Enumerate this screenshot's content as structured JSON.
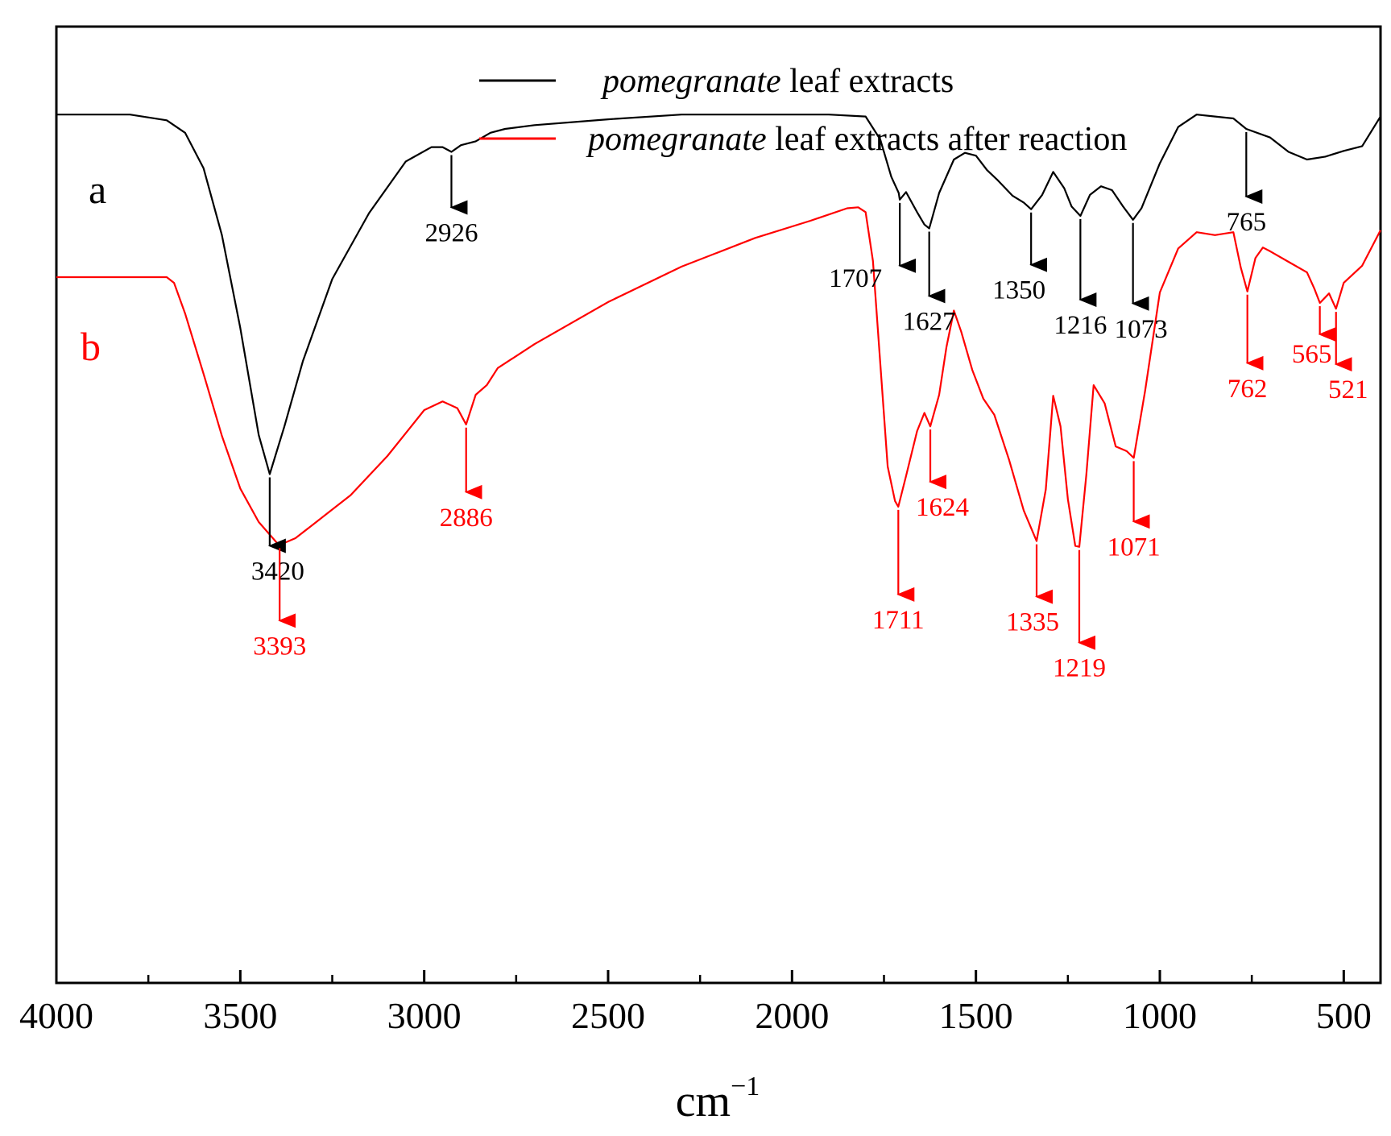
{
  "chart_data": {
    "type": "line",
    "xlabel": "cm",
    "xlabel_exponent": "−1",
    "ylabel": "",
    "xlim": [
      4000,
      400
    ],
    "x_reversed": true,
    "ylim": [
      0,
      100
    ],
    "y_ticks_shown": false,
    "grid": false,
    "legend_position": "top-center",
    "x_ticks": [
      4000,
      3500,
      3000,
      2500,
      2000,
      1500,
      1000,
      500
    ],
    "x_tick_labels": [
      "4000",
      "3500",
      "3000",
      "2500",
      "2000",
      "1500",
      "1000",
      "500"
    ],
    "legend": [
      {
        "italic_text": "pomegranate",
        "text": " leaf extracts",
        "color": "#000000"
      },
      {
        "italic_text": "pomegranate",
        "text": " leaf extracts after reaction",
        "color": "#ff0000"
      }
    ],
    "series": [
      {
        "letter": "a",
        "color": "#000000",
        "x": [
          4000,
          3800,
          3700,
          3650,
          3600,
          3550,
          3500,
          3450,
          3420,
          3380,
          3330,
          3250,
          3150,
          3050,
          2980,
          2950,
          2926,
          2900,
          2860,
          2820,
          2780,
          2700,
          2500,
          2300,
          2100,
          1900,
          1800,
          1760,
          1730,
          1710,
          1707,
          1690,
          1660,
          1640,
          1627,
          1600,
          1560,
          1530,
          1500,
          1470,
          1440,
          1400,
          1370,
          1350,
          1320,
          1290,
          1260,
          1240,
          1216,
          1190,
          1160,
          1130,
          1100,
          1073,
          1050,
          1000,
          950,
          900,
          850,
          800,
          765,
          700,
          650,
          600,
          550,
          500,
          450,
          400
        ],
        "y": [
          90.8,
          90.8,
          90.2,
          88.9,
          85.2,
          78.2,
          68.5,
          57.3,
          53.2,
          58.2,
          65.0,
          73.6,
          80.5,
          85.9,
          87.4,
          87.4,
          86.9,
          87.6,
          88.0,
          88.9,
          89.3,
          89.7,
          90.3,
          90.8,
          90.8,
          90.8,
          90.6,
          88.2,
          84.3,
          82.6,
          81.9,
          82.7,
          80.6,
          79.3,
          78.9,
          82.6,
          86.1,
          86.8,
          86.5,
          85.0,
          83.9,
          82.3,
          81.6,
          80.9,
          82.4,
          84.8,
          83.1,
          81.2,
          80.2,
          82.4,
          83.3,
          82.9,
          81.2,
          79.8,
          81.0,
          85.7,
          89.5,
          90.8,
          90.6,
          90.4,
          89.3,
          88.4,
          86.9,
          86.1,
          86.4,
          87.0,
          87.5,
          90.6
        ]
      },
      {
        "letter": "b",
        "color": "#ff0000",
        "x": [
          4000,
          3800,
          3700,
          3680,
          3650,
          3600,
          3550,
          3500,
          3450,
          3400,
          3393,
          3350,
          3300,
          3200,
          3100,
          3000,
          2950,
          2910,
          2886,
          2860,
          2830,
          2800,
          2700,
          2500,
          2300,
          2100,
          1950,
          1850,
          1820,
          1800,
          1780,
          1760,
          1740,
          1720,
          1711,
          1690,
          1660,
          1640,
          1624,
          1600,
          1580,
          1560,
          1540,
          1510,
          1480,
          1450,
          1410,
          1370,
          1335,
          1310,
          1290,
          1270,
          1250,
          1230,
          1219,
          1200,
          1180,
          1150,
          1120,
          1090,
          1071,
          1040,
          1000,
          950,
          900,
          850,
          800,
          780,
          762,
          740,
          720,
          700,
          650,
          600,
          580,
          565,
          540,
          521,
          500,
          450,
          400
        ],
        "y": [
          73.8,
          73.8,
          73.8,
          73.2,
          70.0,
          63.7,
          57.2,
          51.7,
          48.2,
          46.0,
          45.8,
          46.5,
          48.0,
          51.0,
          55.1,
          59.9,
          60.8,
          60.1,
          58.4,
          61.5,
          62.5,
          64.3,
          66.8,
          71.2,
          74.9,
          77.9,
          79.7,
          81.0,
          81.1,
          80.6,
          75.5,
          64.8,
          54.0,
          50.4,
          49.8,
          53.0,
          57.7,
          59.6,
          58.2,
          61.5,
          66.5,
          70.3,
          68.1,
          64.1,
          61.1,
          59.4,
          54.7,
          49.4,
          46.2,
          51.6,
          61.4,
          58.2,
          50.6,
          45.7,
          45.6,
          53.1,
          62.5,
          60.6,
          56.1,
          55.6,
          54.9,
          61.9,
          72.2,
          76.8,
          78.5,
          78.2,
          78.5,
          74.8,
          72.3,
          75.8,
          76.9,
          76.5,
          75.4,
          74.3,
          72.6,
          71.1,
          72.1,
          70.5,
          73.2,
          75.0,
          78.7
        ]
      }
    ],
    "peak_annotations": [
      {
        "series": "a",
        "label": "3420",
        "x": 3420
      },
      {
        "series": "a",
        "label": "2926",
        "x": 2926
      },
      {
        "series": "a",
        "label": "1707",
        "x": 1707
      },
      {
        "series": "a",
        "label": "1627",
        "x": 1627
      },
      {
        "series": "a",
        "label": "1350",
        "x": 1350
      },
      {
        "series": "a",
        "label": "1216",
        "x": 1216
      },
      {
        "series": "a",
        "label": "1073",
        "x": 1073
      },
      {
        "series": "a",
        "label": "765",
        "x": 765
      },
      {
        "series": "b",
        "label": "3393",
        "x": 3393
      },
      {
        "series": "b",
        "label": "2886",
        "x": 2886
      },
      {
        "series": "b",
        "label": "1711",
        "x": 1711
      },
      {
        "series": "b",
        "label": "1624",
        "x": 1624
      },
      {
        "series": "b",
        "label": "1335",
        "x": 1335
      },
      {
        "series": "b",
        "label": "1219",
        "x": 1219
      },
      {
        "series": "b",
        "label": "1071",
        "x": 1071
      },
      {
        "series": "b",
        "label": "762",
        "x": 762
      },
      {
        "series": "b",
        "label": "565",
        "x": 565
      },
      {
        "series": "b",
        "label": "521",
        "x": 521
      }
    ]
  }
}
